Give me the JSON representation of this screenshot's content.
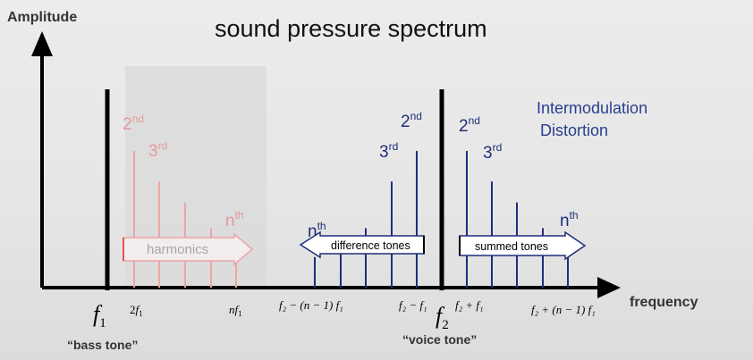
{
  "title": "sound pressure spectrum",
  "y_axis_label": "Amplitude",
  "x_axis_label": "frequency",
  "intermodulation_label": [
    "Intermodulation",
    " Distortion"
  ],
  "colors": {
    "axis": "#000000",
    "harmonics": "#e8a7a7",
    "harmonics_text": "#e59a9a",
    "intermod": "#1f2f7a",
    "highlight_box": "#d9d9d9",
    "intermod_text": "#2a3f8f"
  },
  "fundamentals": [
    {
      "name": "bass",
      "symbol": "f",
      "subscript": "1",
      "caption": "“bass tone”"
    },
    {
      "name": "voice",
      "symbol": "f",
      "subscript": "2",
      "caption": "“voice tone”"
    }
  ],
  "harmonics": {
    "arrow_label": "harmonics",
    "order_labels": [
      {
        "base": "2",
        "sup": "nd"
      },
      {
        "base": "3",
        "sup": "rd"
      },
      {
        "base": "n",
        "sup": "th"
      }
    ],
    "relative_heights": [
      0.85,
      0.66,
      0.53,
      0.37,
      0.26
    ],
    "tick_labels": [
      {
        "pre": "2",
        "f": "f",
        "sub": "1"
      },
      {
        "pre": "n",
        "f": "f",
        "sub": "1"
      }
    ]
  },
  "difference_tones": {
    "arrow_label": "difference  tones",
    "order_labels": [
      {
        "base": "2",
        "sup": "nd"
      },
      {
        "base": "3",
        "sup": "rd"
      },
      {
        "base": "n",
        "sup": "th"
      }
    ],
    "relative_heights": [
      0.19,
      0.26,
      0.37,
      0.53,
      0.66,
      0.85
    ],
    "tick_labels": [
      "f₂ − (n − 1) f₁",
      "f₂ − f₁"
    ]
  },
  "summed_tones": {
    "arrow_label": "summed  tones",
    "order_labels": [
      {
        "base": "2",
        "sup": "nd"
      },
      {
        "base": "3",
        "sup": "rd"
      },
      {
        "base": "n",
        "sup": "th"
      }
    ],
    "relative_heights": [
      0.85,
      0.66,
      0.53,
      0.37,
      0.26
    ],
    "tick_labels": [
      "f₂ + f₁",
      "f₂ + (n − 1) f₁"
    ]
  }
}
